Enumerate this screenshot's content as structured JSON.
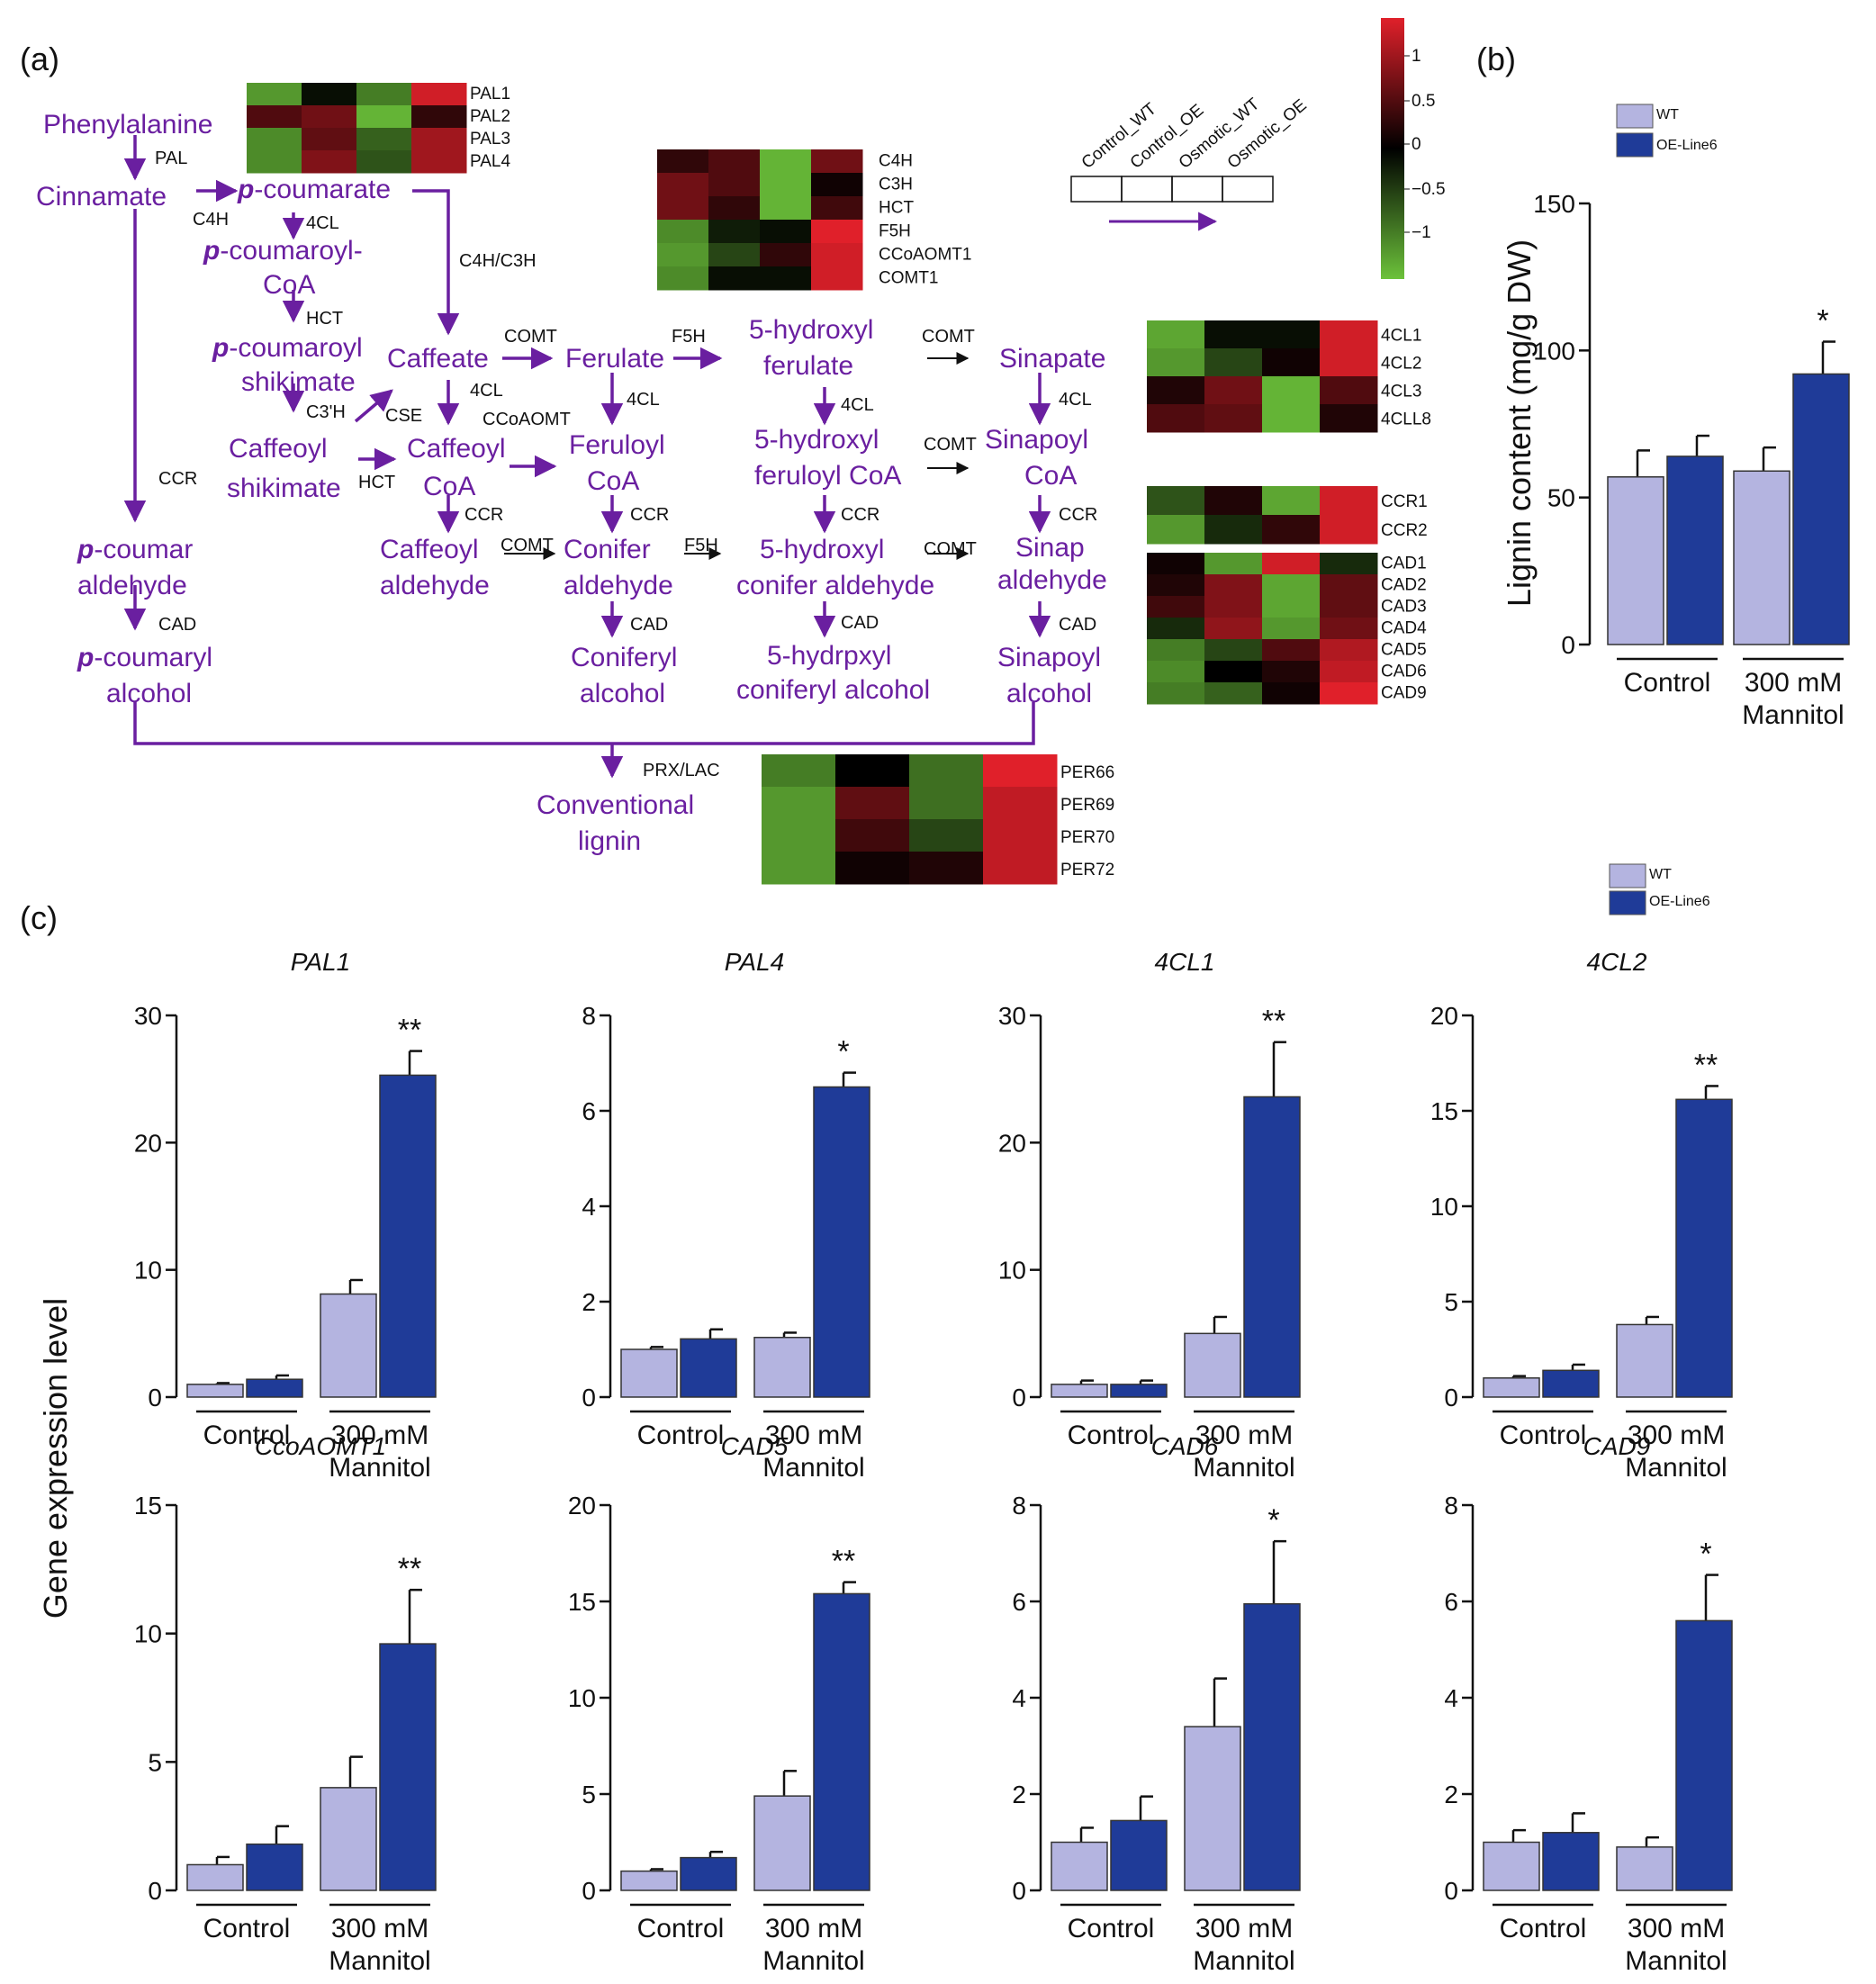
{
  "panel_labels": {
    "a": "(a)",
    "b": "(b)",
    "c": "(c)"
  },
  "colors": {
    "wt": "#b4b4e0",
    "oe": "#1f3b98",
    "pathway": "#6a1fa0",
    "highlight_gene": "#e8202a",
    "heat_high": "#e0202a",
    "heat_mid": "#000000",
    "heat_low": "#6cc23a"
  },
  "pathway": {
    "metabolites": [
      {
        "id": "phe",
        "text": "Phenylalanine"
      },
      {
        "id": "cin",
        "text": "Cinnamate"
      },
      {
        "id": "pcou",
        "text": "-coumarate",
        "prefix": "p"
      },
      {
        "id": "pcoa1",
        "text": "-coumaroyl-",
        "prefix": "p"
      },
      {
        "id": "pcoa2",
        "text": "CoA"
      },
      {
        "id": "pshik1",
        "text": "-coumaroyl",
        "prefix": "p"
      },
      {
        "id": "pshik2",
        "text": "shikimate"
      },
      {
        "id": "caffeate",
        "text": "Caffeate"
      },
      {
        "id": "ferulate",
        "text": "Ferulate"
      },
      {
        "id": "hf1",
        "text": "5-hydroxyl"
      },
      {
        "id": "hf2",
        "text": "ferulate"
      },
      {
        "id": "sinapate",
        "text": "Sinapate"
      },
      {
        "id": "cshik1",
        "text": "Caffeoyl"
      },
      {
        "id": "cshik2",
        "text": "shikimate"
      },
      {
        "id": "ccoa1",
        "text": "Caffeoyl"
      },
      {
        "id": "ccoa2",
        "text": "CoA"
      },
      {
        "id": "fcoa1",
        "text": "Feruloyl"
      },
      {
        "id": "fcoa2",
        "text": "CoA"
      },
      {
        "id": "hfcoa1",
        "text": "5-hydroxyl"
      },
      {
        "id": "hfcoa2",
        "text": "feruloyl CoA"
      },
      {
        "id": "scoa1",
        "text": "Sinapoyl"
      },
      {
        "id": "scoa2",
        "text": "CoA"
      },
      {
        "id": "pald1",
        "text": "-coumar",
        "prefix": "p"
      },
      {
        "id": "pald2",
        "text": "aldehyde"
      },
      {
        "id": "cald1",
        "text": "Caffeoyl"
      },
      {
        "id": "cald2",
        "text": "aldehyde"
      },
      {
        "id": "conald1",
        "text": "Conifer"
      },
      {
        "id": "conald2",
        "text": "aldehyde"
      },
      {
        "id": "hconald1",
        "text": "5-hydroxyl"
      },
      {
        "id": "hconald2",
        "text": "conifer aldehyde"
      },
      {
        "id": "sald1",
        "text": "Sinap"
      },
      {
        "id": "sald2",
        "text": "aldehyde"
      },
      {
        "id": "palc1",
        "text": "-coumaryl",
        "prefix": "p"
      },
      {
        "id": "palc2",
        "text": "alcohol"
      },
      {
        "id": "conalc1",
        "text": "Coniferyl"
      },
      {
        "id": "conalc2",
        "text": "alcohol"
      },
      {
        "id": "hconalc1",
        "text": "5-hydrpxyl"
      },
      {
        "id": "hconalc2",
        "text": "coniferyl alcohol"
      },
      {
        "id": "salc1",
        "text": "Sinapoyl"
      },
      {
        "id": "salc2",
        "text": "alcohol"
      },
      {
        "id": "lig1",
        "text": "Conventional"
      },
      {
        "id": "lig2",
        "text": "lignin"
      }
    ],
    "enzymes": [
      {
        "id": "e_pal",
        "text": "PAL"
      },
      {
        "id": "e_c4h",
        "text": "C4H"
      },
      {
        "id": "e_4cl_a",
        "text": "4CL"
      },
      {
        "id": "e_c4hc3h",
        "text": "C4H/C3H"
      },
      {
        "id": "e_hct_a",
        "text": "HCT"
      },
      {
        "id": "e_comt_a",
        "text": "COMT"
      },
      {
        "id": "e_f5h_a",
        "text": "F5H"
      },
      {
        "id": "e_comt_b",
        "text": "COMT"
      },
      {
        "id": "e_c3h",
        "text": "C3'H"
      },
      {
        "id": "e_cse",
        "text": "CSE"
      },
      {
        "id": "e_4cl_b",
        "text": "4CL"
      },
      {
        "id": "e_ccoaomt",
        "text": "CCoAOMT"
      },
      {
        "id": "e_4cl_c",
        "text": "4CL"
      },
      {
        "id": "e_4cl_d",
        "text": "4CL"
      },
      {
        "id": "e_4cl_e",
        "text": "4CL"
      },
      {
        "id": "e_hct_b",
        "text": "HCT"
      },
      {
        "id": "e_comt_c",
        "text": "COMT"
      },
      {
        "id": "e_ccr_a",
        "text": "CCR"
      },
      {
        "id": "e_ccr_b",
        "text": "CCR"
      },
      {
        "id": "e_ccr_c",
        "text": "CCR"
      },
      {
        "id": "e_ccr_d",
        "text": "CCR"
      },
      {
        "id": "e_ccr_e",
        "text": "CCR"
      },
      {
        "id": "e_comt_d",
        "text": "COMT"
      },
      {
        "id": "e_f5h_b",
        "text": "F5H"
      },
      {
        "id": "e_comt_e",
        "text": "COMT"
      },
      {
        "id": "e_cad_a",
        "text": "CAD"
      },
      {
        "id": "e_cad_b",
        "text": "CAD"
      },
      {
        "id": "e_cad_c",
        "text": "CAD"
      },
      {
        "id": "e_cad_d",
        "text": "CAD"
      },
      {
        "id": "e_prx",
        "text": "PRX/LAC"
      }
    ]
  },
  "heatmap_columns": [
    "Control_WT",
    "Control_OE",
    "Osmotic_WT",
    "Osmotic_OE"
  ],
  "heatmap_scale": {
    "ticks": [
      "1",
      "0.5",
      "0",
      "−0.5",
      "−1"
    ],
    "min": -1.4,
    "max": 1.4
  },
  "heatmaps": [
    {
      "id": "pal",
      "genes": [
        {
          "name": "PAL1",
          "highlight": true,
          "values": [
            -1.1,
            -0.1,
            -0.9,
            1.3
          ]
        },
        {
          "name": "PAL2",
          "highlight": false,
          "values": [
            0.5,
            0.7,
            -1.3,
            0.3
          ]
        },
        {
          "name": "PAL3",
          "highlight": false,
          "values": [
            -1.0,
            0.6,
            -0.7,
            1.0
          ]
        },
        {
          "name": "PAL4",
          "highlight": true,
          "values": [
            -1.0,
            0.8,
            -0.6,
            1.0
          ]
        }
      ]
    },
    {
      "id": "c4h",
      "genes": [
        {
          "name": "C4H",
          "highlight": false,
          "values": [
            0.3,
            0.5,
            -1.3,
            0.7
          ]
        },
        {
          "name": "C3H",
          "highlight": false,
          "values": [
            0.7,
            0.5,
            -1.3,
            0.1
          ]
        },
        {
          "name": "HCT",
          "highlight": false,
          "values": [
            0.7,
            0.3,
            -1.3,
            0.4
          ]
        },
        {
          "name": "F5H",
          "highlight": true,
          "values": [
            -1.0,
            -0.2,
            -0.1,
            1.4
          ]
        },
        {
          "name": "CCoAOMT1",
          "highlight": false,
          "values": [
            -1.1,
            -0.5,
            0.3,
            1.3
          ]
        },
        {
          "name": "COMT1",
          "highlight": false,
          "values": [
            -1.0,
            -0.1,
            -0.1,
            1.3
          ]
        }
      ]
    },
    {
      "id": "fourcl",
      "genes": [
        {
          "name": "4CL1",
          "highlight": true,
          "values": [
            -1.2,
            -0.1,
            -0.1,
            1.3
          ]
        },
        {
          "name": "4CL2",
          "highlight": true,
          "values": [
            -1.1,
            -0.5,
            0.1,
            1.3
          ]
        },
        {
          "name": "4CL3",
          "highlight": true,
          "values": [
            0.2,
            0.7,
            -1.3,
            0.5
          ]
        },
        {
          "name": "4CLL8",
          "highlight": false,
          "values": [
            0.5,
            0.6,
            -1.3,
            0.2
          ]
        }
      ]
    },
    {
      "id": "ccr",
      "genes": [
        {
          "name": "CCR1",
          "highlight": true,
          "values": [
            -0.6,
            0.2,
            -1.2,
            1.3
          ]
        },
        {
          "name": "CCR2",
          "highlight": false,
          "values": [
            -1.1,
            -0.3,
            0.3,
            1.3
          ]
        }
      ]
    },
    {
      "id": "cad",
      "genes": [
        {
          "name": "CAD1",
          "highlight": false,
          "values": [
            0.1,
            -1.1,
            1.3,
            -0.3
          ]
        },
        {
          "name": "CAD2",
          "highlight": true,
          "values": [
            0.2,
            0.8,
            -1.2,
            0.6
          ]
        },
        {
          "name": "CAD3",
          "highlight": true,
          "values": [
            0.4,
            0.8,
            -1.2,
            0.6
          ]
        },
        {
          "name": "CAD4",
          "highlight": true,
          "values": [
            -0.3,
            0.9,
            -1.1,
            0.7
          ]
        },
        {
          "name": "CAD5",
          "highlight": false,
          "values": [
            -0.9,
            -0.5,
            0.5,
            1.1
          ]
        },
        {
          "name": "CAD6",
          "highlight": false,
          "values": [
            -1.0,
            0.0,
            0.2,
            1.2
          ]
        },
        {
          "name": "CAD9",
          "highlight": true,
          "values": [
            -0.9,
            -0.7,
            0.1,
            1.4
          ]
        }
      ]
    },
    {
      "id": "per",
      "genes": [
        {
          "name": "PER66",
          "highlight": true,
          "values": [
            -0.9,
            0.0,
            -0.8,
            1.4
          ]
        },
        {
          "name": "PER69",
          "highlight": true,
          "values": [
            -1.1,
            0.6,
            -0.8,
            1.2
          ]
        },
        {
          "name": "PER70",
          "highlight": true,
          "values": [
            -1.1,
            0.4,
            -0.5,
            1.2
          ]
        },
        {
          "name": "PER72",
          "highlight": true,
          "values": [
            -1.1,
            0.1,
            0.2,
            1.2
          ]
        }
      ]
    }
  ],
  "legend": {
    "wt": "WT",
    "oe": "OE-Line6"
  },
  "group_labels": {
    "control": "Control",
    "mannitol_1": "300 mM",
    "mannitol_2": "Mannitol"
  },
  "chart_data": [
    {
      "id": "lignin",
      "type": "bar",
      "title": "",
      "ylabel": "Lignin content (mg/g DW)",
      "ylim": [
        0,
        150
      ],
      "yticks": [
        0,
        50,
        100,
        150
      ],
      "categories": [
        "Control",
        "300 mM Mannitol"
      ],
      "series": [
        {
          "name": "WT",
          "values": [
            57,
            59
          ],
          "errors": [
            9,
            8
          ]
        },
        {
          "name": "OE-Line6",
          "values": [
            64,
            92
          ],
          "errors": [
            7,
            11
          ]
        }
      ],
      "annotations": [
        "",
        "*"
      ]
    },
    {
      "id": "pal1",
      "type": "bar",
      "title": "PAL1",
      "ylim": [
        0,
        30
      ],
      "yticks": [
        0,
        10,
        20,
        30
      ],
      "categories": [
        "Control",
        "300 mM Mannitol"
      ],
      "series": [
        {
          "name": "WT",
          "values": [
            1.0,
            8.1
          ],
          "errors": [
            0.1,
            1.1
          ]
        },
        {
          "name": "OE-Line6",
          "values": [
            1.4,
            25.3
          ],
          "errors": [
            0.3,
            1.9
          ]
        }
      ],
      "annotations": [
        "",
        "**"
      ]
    },
    {
      "id": "pal4",
      "type": "bar",
      "title": "PAL4",
      "ylim": [
        0,
        8
      ],
      "yticks": [
        0,
        2,
        4,
        6,
        8
      ],
      "categories": [
        "Control",
        "300 mM Mannitol"
      ],
      "series": [
        {
          "name": "WT",
          "values": [
            1.0,
            1.25
          ],
          "errors": [
            0.05,
            0.1
          ]
        },
        {
          "name": "OE-Line6",
          "values": [
            1.22,
            6.5
          ],
          "errors": [
            0.2,
            0.3
          ]
        }
      ],
      "annotations": [
        "",
        "*"
      ]
    },
    {
      "id": "4cl1",
      "type": "bar",
      "title": "4CL1",
      "ylim": [
        0,
        30
      ],
      "yticks": [
        0,
        10,
        20,
        30
      ],
      "categories": [
        "Control",
        "300 mM Mannitol"
      ],
      "series": [
        {
          "name": "WT",
          "values": [
            1.0,
            5.0
          ],
          "errors": [
            0.3,
            1.3
          ]
        },
        {
          "name": "OE-Line6",
          "values": [
            1.0,
            23.6
          ],
          "errors": [
            0.3,
            4.3
          ]
        }
      ],
      "annotations": [
        "",
        "**"
      ]
    },
    {
      "id": "4cl2",
      "type": "bar",
      "title": "4CL2",
      "ylim": [
        0,
        20
      ],
      "yticks": [
        0,
        5,
        10,
        15,
        20
      ],
      "categories": [
        "Control",
        "300 mM Mannitol"
      ],
      "series": [
        {
          "name": "WT",
          "values": [
            1.0,
            3.8
          ],
          "errors": [
            0.1,
            0.4
          ]
        },
        {
          "name": "OE-Line6",
          "values": [
            1.4,
            15.6
          ],
          "errors": [
            0.3,
            0.7
          ]
        }
      ],
      "annotations": [
        "",
        "**"
      ]
    },
    {
      "id": "ccoaomt1",
      "type": "bar",
      "title": "CcoAOMT1",
      "ylim": [
        0,
        15
      ],
      "yticks": [
        0,
        5,
        10,
        15
      ],
      "categories": [
        "Control",
        "300 mM Mannitol"
      ],
      "series": [
        {
          "name": "WT",
          "values": [
            1.0,
            4.0
          ],
          "errors": [
            0.3,
            1.2
          ]
        },
        {
          "name": "OE-Line6",
          "values": [
            1.8,
            9.6
          ],
          "errors": [
            0.7,
            2.1
          ]
        }
      ],
      "annotations": [
        "",
        "**"
      ]
    },
    {
      "id": "cad5",
      "type": "bar",
      "title": "CAD5",
      "ylim": [
        0,
        20
      ],
      "yticks": [
        0,
        5,
        10,
        15,
        20
      ],
      "categories": [
        "Control",
        "300 mM Mannitol"
      ],
      "series": [
        {
          "name": "WT",
          "values": [
            1.0,
            4.9
          ],
          "errors": [
            0.1,
            1.3
          ]
        },
        {
          "name": "OE-Line6",
          "values": [
            1.7,
            15.4
          ],
          "errors": [
            0.3,
            0.6
          ]
        }
      ],
      "annotations": [
        "",
        "**"
      ]
    },
    {
      "id": "cad6",
      "type": "bar",
      "title": "CAD6",
      "ylim": [
        0,
        8
      ],
      "yticks": [
        0,
        2,
        4,
        6,
        8
      ],
      "categories": [
        "Control",
        "300 mM Mannitol"
      ],
      "series": [
        {
          "name": "WT",
          "values": [
            1.0,
            3.4
          ],
          "errors": [
            0.3,
            1.0
          ]
        },
        {
          "name": "OE-Line6",
          "values": [
            1.45,
            5.95
          ],
          "errors": [
            0.5,
            1.3
          ]
        }
      ],
      "annotations": [
        "",
        "*"
      ]
    },
    {
      "id": "cad9",
      "type": "bar",
      "title": "CAD9",
      "ylim": [
        0,
        8
      ],
      "yticks": [
        0,
        2,
        4,
        6,
        8
      ],
      "categories": [
        "Control",
        "300 mM Mannitol"
      ],
      "series": [
        {
          "name": "WT",
          "values": [
            1.0,
            0.9
          ],
          "errors": [
            0.25,
            0.2
          ]
        },
        {
          "name": "OE-Line6",
          "values": [
            1.2,
            5.6
          ],
          "errors": [
            0.4,
            0.95
          ]
        }
      ],
      "annotations": [
        "",
        "*"
      ]
    }
  ],
  "shared_ylabel_c": "Gene expression level"
}
